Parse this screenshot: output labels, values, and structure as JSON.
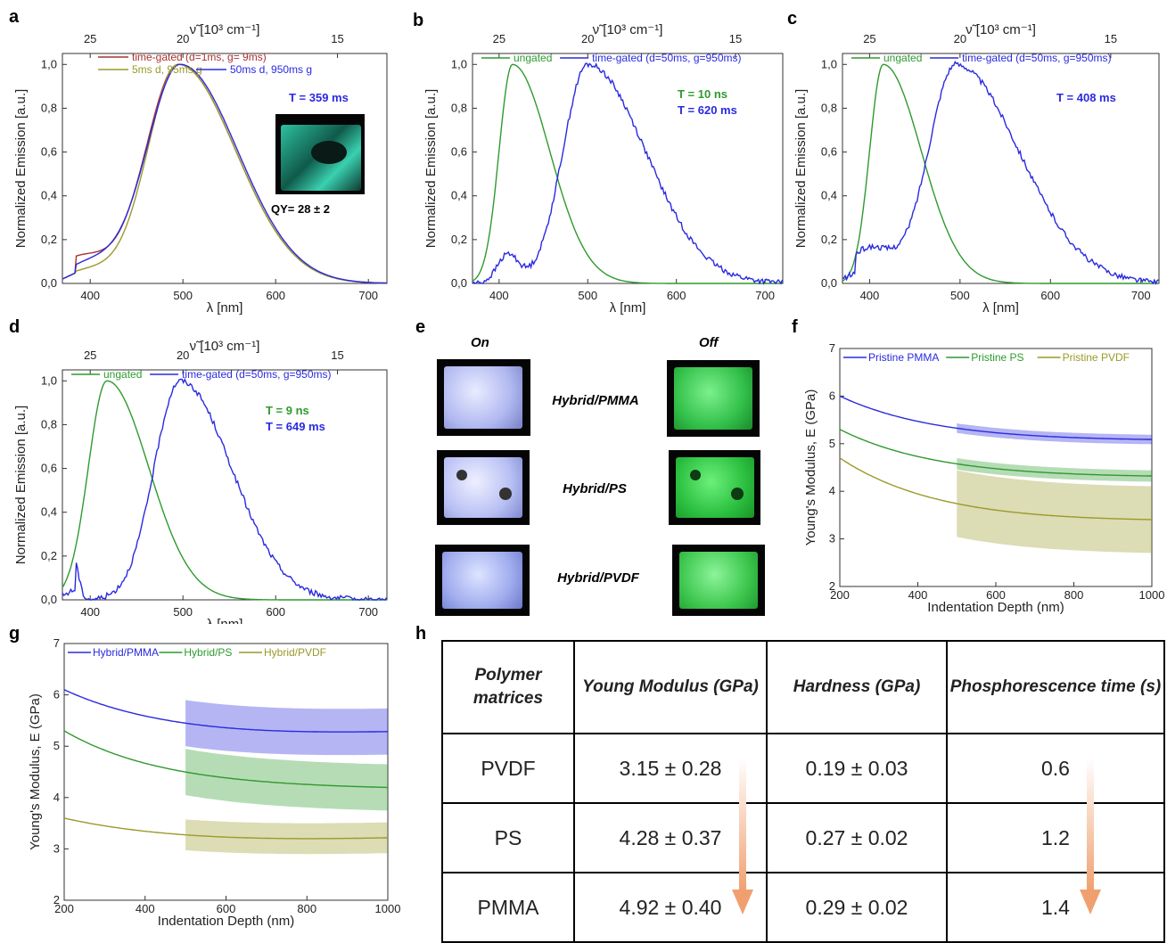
{
  "panels": {
    "a": {
      "letter": "a",
      "top_axis_label": "ν̃ [10³ cm⁻¹]",
      "top_ticks": [
        "25",
        "20",
        "15"
      ],
      "legend": [
        "time-gated (d=1ms, g= 9ms)",
        "5ms d, 95ms g",
        "50ms d, 950ms g"
      ],
      "annotation": "T = 359 ms",
      "qy": "QY= 28 ± 2"
    },
    "b": {
      "letter": "b",
      "top_axis_label": "ν̃ [10³ cm⁻¹]",
      "top_ticks": [
        "25",
        "20",
        "15"
      ],
      "legend": [
        "ungated",
        "time-gated (d=50ms, g=950ms)"
      ],
      "annotation": [
        "T = 10 ns",
        "T = 620 ms"
      ]
    },
    "c": {
      "letter": "c",
      "top_axis_label": "ν̃ [10³ cm⁻¹]",
      "top_ticks": [
        "25",
        "20",
        "15"
      ],
      "legend": [
        "ungated",
        "time-gated (d=50ms, g=950ms)"
      ],
      "annotation": "T = 408 ms"
    },
    "d": {
      "letter": "d",
      "top_axis_label": "ν̃ [10³ cm⁻¹]",
      "top_ticks": [
        "25",
        "20",
        "15"
      ],
      "legend": [
        "ungated",
        "time-gated (d=50ms, g=950ms)"
      ],
      "annotation": [
        "T = 9 ns",
        "T = 649 ms"
      ]
    },
    "e": {
      "letter": "e",
      "col_on": "On",
      "col_off": "Off",
      "rows": [
        "Hybrid/PMMA",
        "Hybrid/PS",
        "Hybrid/PVDF"
      ]
    },
    "f": {
      "letter": "f",
      "legend": [
        "Pristine PMMA",
        "Pristine PS",
        "Pristine PVDF"
      ]
    },
    "g": {
      "letter": "g",
      "legend": [
        "Hybrid/PMMA",
        "Hybrid/PS",
        "Hybrid/PVDF"
      ]
    },
    "h": {
      "letter": "h"
    }
  },
  "colors": {
    "blue": "#2a2ae0",
    "green": "#2e9a2e",
    "olive": "#9a9a2a",
    "red": "#a83232",
    "arrow": "#f0a070"
  },
  "chart_data": [
    {
      "id": "a",
      "type": "line",
      "xlabel": "λ [nm]",
      "ylabel": "Normalized Emission [a.u.]",
      "xlim": [
        370,
        720
      ],
      "ylim": [
        0,
        1.05
      ],
      "xticks": [
        400,
        500,
        600,
        700
      ],
      "yticks": [
        "0,0",
        "0,2",
        "0,4",
        "0,6",
        "0,8",
        "1,0"
      ],
      "series": [
        {
          "name": "time-gated (d=1ms, g= 9ms)",
          "color": "red",
          "peak": 495,
          "wl": 35,
          "wr": 62,
          "bump": [
            390,
            0.12,
            30
          ]
        },
        {
          "name": "5ms d, 95ms g",
          "color": "olive",
          "peak": 495,
          "wl": 33,
          "wr": 62,
          "bump": [
            400,
            0.06,
            30
          ]
        },
        {
          "name": "50ms d, 950ms g",
          "color": "blue",
          "peak": 497,
          "wl": 36,
          "wr": 62,
          "bump": [
            400,
            0.09,
            30
          ]
        }
      ]
    },
    {
      "id": "b",
      "type": "line",
      "xlabel": "λ [nm]",
      "ylabel": "Normalized Emission [a.u.]",
      "xlim": [
        370,
        720
      ],
      "ylim": [
        0,
        1.05
      ],
      "xticks": [
        400,
        500,
        600,
        700
      ],
      "yticks": [
        "0,0",
        "0,2",
        "0,4",
        "0,6",
        "0,8",
        "1,0"
      ],
      "series": [
        {
          "name": "ungated",
          "color": "green",
          "peak": 415,
          "wl": 15,
          "wr": 42
        },
        {
          "name": "time-gated (d=50ms, g=950ms)",
          "color": "blue",
          "peak": 500,
          "wl": 28,
          "wr": 65,
          "bump": [
            410,
            0.13,
            12
          ]
        }
      ]
    },
    {
      "id": "c",
      "type": "line",
      "xlabel": "λ [nm]",
      "ylabel": "Normalized Emission [a.u.]",
      "xlim": [
        370,
        720
      ],
      "ylim": [
        0,
        1.05
      ],
      "xticks": [
        400,
        500,
        600,
        700
      ],
      "yticks": [
        "0,0",
        "0,2",
        "0,4",
        "0,6",
        "0,8",
        "1,0"
      ],
      "series": [
        {
          "name": "ungated",
          "color": "green",
          "peak": 415,
          "wl": 15,
          "wr": 42
        },
        {
          "name": "time-gated (d=50ms, g=950ms)",
          "color": "blue",
          "peak": 495,
          "wl": 30,
          "wr": 70,
          "bump": [
            400,
            0.16,
            25
          ]
        }
      ]
    },
    {
      "id": "d",
      "type": "line",
      "xlabel": "λ [nm]",
      "ylabel": "Normalized Emission [a.u.]",
      "xlim": [
        370,
        720
      ],
      "ylim": [
        0,
        1.05
      ],
      "xticks": [
        400,
        500,
        600,
        700
      ],
      "yticks": [
        "0,0",
        "0,2",
        "0,4",
        "0,6",
        "0,8",
        "1,0"
      ],
      "series": [
        {
          "name": "ungated",
          "color": "green",
          "peak": 418,
          "wl": 20,
          "wr": 45
        },
        {
          "name": "time-gated (d=50ms, g=950ms)",
          "color": "blue",
          "peak": 497,
          "wl": 28,
          "wr": 55,
          "bump": [
            380,
            0.24,
            6
          ]
        }
      ]
    },
    {
      "id": "f",
      "type": "line",
      "xlabel": "Indentation Depth (nm)",
      "ylabel": "Young's Modulus, E (GPa)",
      "xlim": [
        200,
        1000
      ],
      "ylim": [
        2,
        7
      ],
      "xticks": [
        200,
        400,
        600,
        800,
        1000
      ],
      "yticks": [
        2,
        3,
        4,
        5,
        6,
        7
      ],
      "series": [
        {
          "name": "Pristine PMMA",
          "color": "blue",
          "start": 6.0,
          "mid": 5.3,
          "end": 5.05,
          "err": 0.1
        },
        {
          "name": "Pristine PS",
          "color": "green",
          "start": 5.3,
          "mid": 4.55,
          "end": 4.28,
          "err": 0.12
        },
        {
          "name": "Pristine PVDF",
          "color": "olive",
          "start": 4.7,
          "mid": 3.7,
          "end": 3.35,
          "err": 0.7
        }
      ]
    },
    {
      "id": "g",
      "type": "line",
      "xlabel": "Indentation Depth (nm)",
      "ylabel": "Young's Modulus, E (GPa)",
      "xlim": [
        200,
        1000
      ],
      "ylim": [
        2,
        7
      ],
      "xticks": [
        200,
        400,
        600,
        800,
        1000
      ],
      "yticks": [
        2,
        3,
        4,
        5,
        6,
        7
      ],
      "series": [
        {
          "name": "Hybrid/PMMA",
          "color": "blue",
          "start": 6.1,
          "mid": 5.3,
          "end": 5.25,
          "err": 0.45
        },
        {
          "name": "Hybrid/PS",
          "color": "green",
          "start": 5.3,
          "mid": 4.5,
          "end": 4.15,
          "err": 0.45
        },
        {
          "name": "Hybrid/PVDF",
          "color": "olive",
          "start": 3.6,
          "mid": 3.15,
          "end": 3.2,
          "err": 0.3
        }
      ]
    },
    {
      "id": "h",
      "type": "table",
      "columns": [
        "Polymer matrices",
        "Young Modulus (GPa)",
        "Hardness (GPa)",
        "Phosphorescence time (s)"
      ],
      "rows": [
        [
          "PVDF",
          "3.15 ± 0.28",
          "0.19 ± 0.03",
          "0.6"
        ],
        [
          "PS",
          "4.28 ± 0.37",
          "0.27 ± 0.02",
          "1.2"
        ],
        [
          "PMMA",
          "4.92 ± 0.40",
          "0.29 ± 0.02",
          "1.4"
        ]
      ]
    }
  ]
}
